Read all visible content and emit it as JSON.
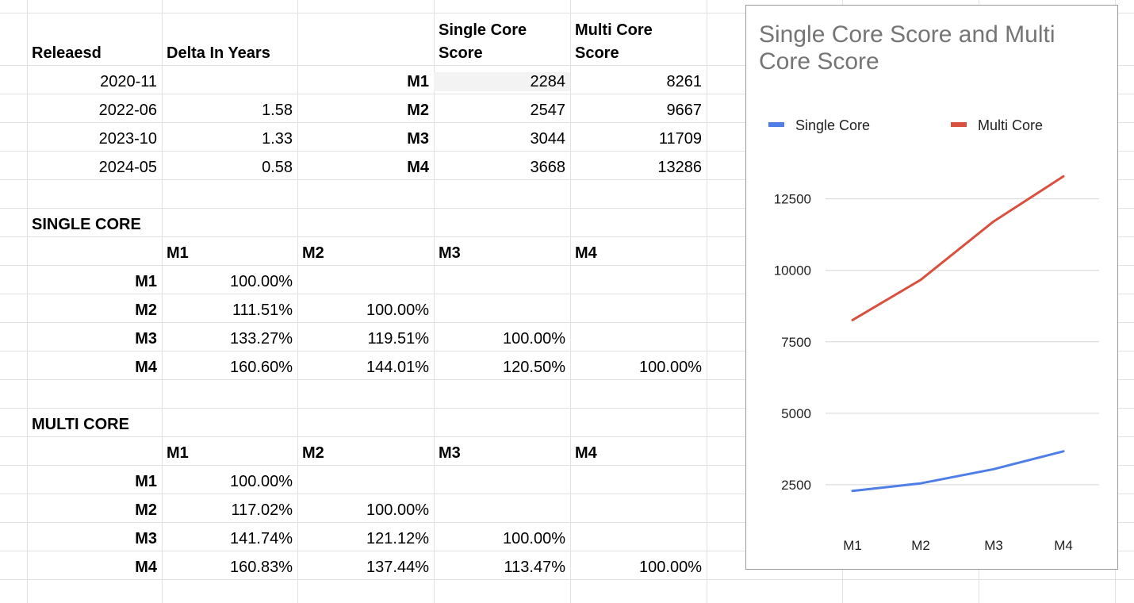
{
  "top_table": {
    "headers": {
      "released": "Releaesd",
      "delta": "Delta In Years",
      "single_line1": "Single Core",
      "single_line2": "Score",
      "multi_line1": "Multi Core",
      "multi_line2": "Score"
    },
    "rows": [
      {
        "released": "2020-11",
        "delta": "",
        "chip": "M1",
        "single": "2284",
        "multi": "8261"
      },
      {
        "released": "2022-06",
        "delta": "1.58",
        "chip": "M2",
        "single": "2547",
        "multi": "9667"
      },
      {
        "released": "2023-10",
        "delta": "1.33",
        "chip": "M3",
        "single": "3044",
        "multi": "11709"
      },
      {
        "released": "2024-05",
        "delta": "0.58",
        "chip": "M4",
        "single": "3668",
        "multi": "13286"
      }
    ]
  },
  "single_core": {
    "title": "SINGLE CORE",
    "cols": [
      "M1",
      "M2",
      "M3",
      "M4"
    ],
    "rows": [
      {
        "label": "M1",
        "vals": [
          "100.00%",
          "",
          "",
          ""
        ]
      },
      {
        "label": "M2",
        "vals": [
          "111.51%",
          "100.00%",
          "",
          ""
        ]
      },
      {
        "label": "M3",
        "vals": [
          "133.27%",
          "119.51%",
          "100.00%",
          ""
        ]
      },
      {
        "label": "M4",
        "vals": [
          "160.60%",
          "144.01%",
          "120.50%",
          "100.00%"
        ]
      }
    ]
  },
  "multi_core": {
    "title": "MULTI CORE",
    "cols": [
      "M1",
      "M2",
      "M3",
      "M4"
    ],
    "rows": [
      {
        "label": "M1",
        "vals": [
          "100.00%",
          "",
          "",
          ""
        ]
      },
      {
        "label": "M2",
        "vals": [
          "117.02%",
          "100.00%",
          "",
          ""
        ]
      },
      {
        "label": "M3",
        "vals": [
          "141.74%",
          "121.12%",
          "100.00%",
          ""
        ]
      },
      {
        "label": "M4",
        "vals": [
          "160.83%",
          "137.44%",
          "113.47%",
          "100.00%"
        ]
      }
    ]
  },
  "chart_data": {
    "type": "line",
    "title": "Single Core Score and Multi Core Score",
    "categories": [
      "M1",
      "M2",
      "M3",
      "M4"
    ],
    "series": [
      {
        "name": "Single Core",
        "color": "#4f7fe6",
        "values": [
          2284,
          2547,
          3044,
          3668
        ]
      },
      {
        "name": "Multi Core",
        "color": "#d9503f",
        "values": [
          8261,
          9667,
          11709,
          13286
        ]
      }
    ],
    "yticks": [
      2500,
      5000,
      7500,
      10000,
      12500
    ],
    "ylim": [
      0,
      15000
    ],
    "grid": true,
    "legend_position": "top"
  }
}
